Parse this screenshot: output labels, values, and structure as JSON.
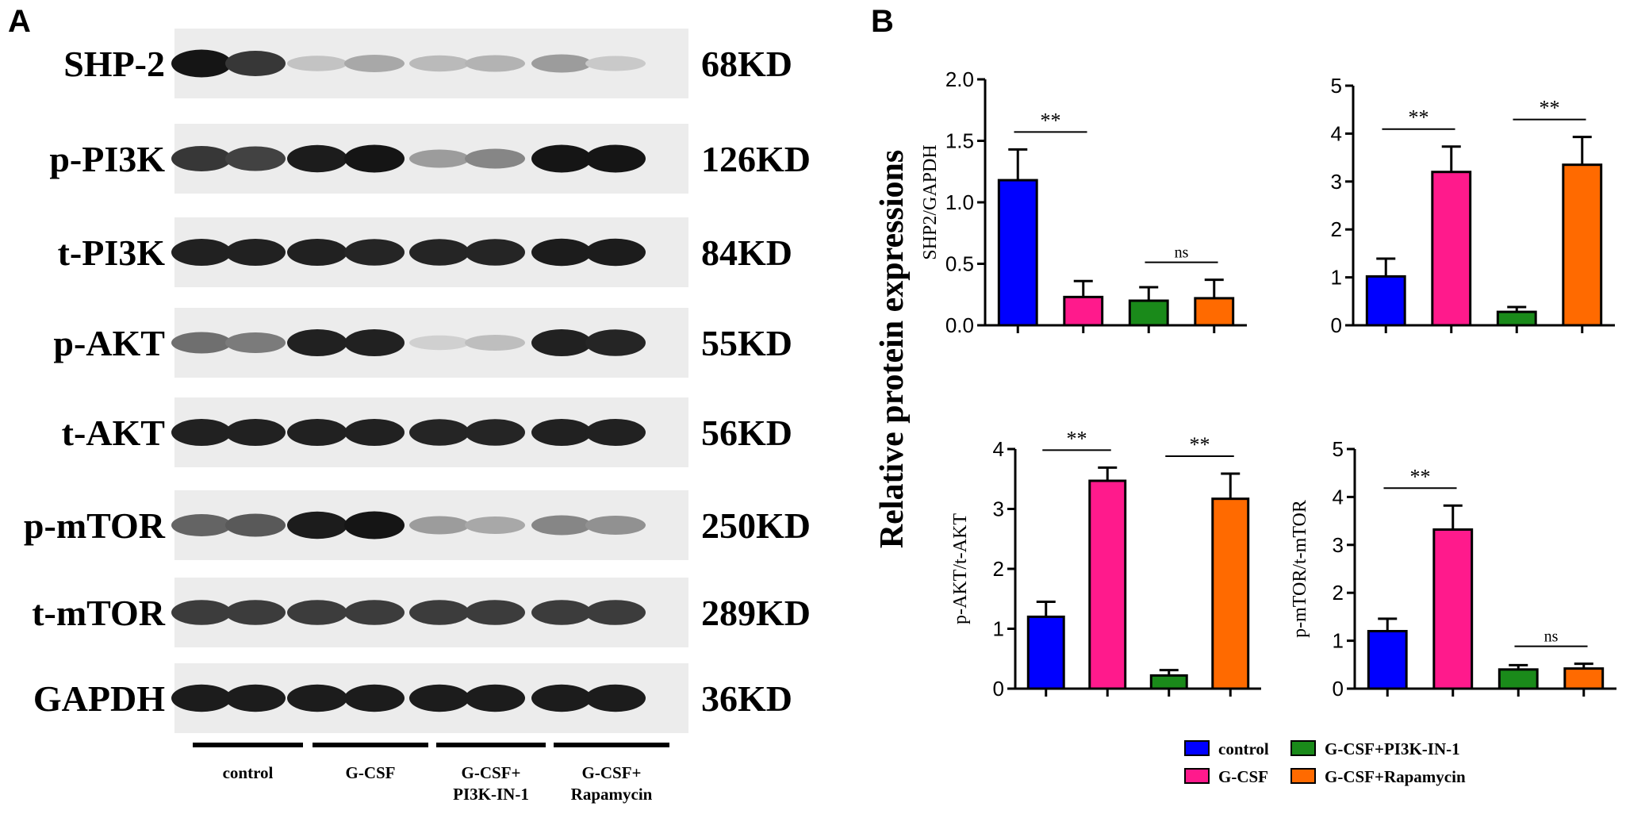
{
  "panel_a": {
    "label": "A",
    "blots": [
      {
        "name": "SHP-2",
        "kd": "68KD",
        "bands": [
          0.95,
          0.8,
          0.18,
          0.3,
          0.22,
          0.25,
          0.35,
          0.15
        ]
      },
      {
        "name": "p-PI3K",
        "kd": "126KD",
        "bands": [
          0.8,
          0.75,
          0.92,
          0.95,
          0.35,
          0.45,
          0.95,
          0.95
        ]
      },
      {
        "name": "t-PI3K",
        "kd": "84KD",
        "bands": [
          0.9,
          0.9,
          0.9,
          0.88,
          0.88,
          0.88,
          0.92,
          0.92
        ]
      },
      {
        "name": "p-AKT",
        "kd": "55KD",
        "bands": [
          0.55,
          0.5,
          0.9,
          0.9,
          0.12,
          0.2,
          0.9,
          0.88
        ]
      },
      {
        "name": "t-AKT",
        "kd": "56KD",
        "bands": [
          0.9,
          0.9,
          0.9,
          0.9,
          0.88,
          0.88,
          0.9,
          0.9
        ]
      },
      {
        "name": "p-mTOR",
        "kd": "250KD",
        "bands": [
          0.6,
          0.65,
          0.92,
          0.95,
          0.35,
          0.3,
          0.45,
          0.4
        ]
      },
      {
        "name": "t-mTOR",
        "kd": "289KD",
        "bands": [
          0.78,
          0.78,
          0.78,
          0.78,
          0.78,
          0.78,
          0.78,
          0.78
        ]
      },
      {
        "name": "GAPDH",
        "kd": "36KD",
        "bands": [
          0.92,
          0.92,
          0.92,
          0.92,
          0.92,
          0.92,
          0.92,
          0.92
        ]
      }
    ],
    "groups": [
      {
        "line1": "control",
        "line2": ""
      },
      {
        "line1": "G-CSF",
        "line2": ""
      },
      {
        "line1": "G-CSF+",
        "line2": "PI3K-IN-1"
      },
      {
        "line1": "G-CSF+",
        "line2": "Rapamycin"
      }
    ]
  },
  "panel_b": {
    "label": "B",
    "shared_ylabel": "Relative protein expressions",
    "colors": {
      "control": "#0000ff",
      "gcsf": "#ff1a8c",
      "pi3k": "#1a8a1a",
      "rapa": "#ff6a00"
    },
    "legend": [
      {
        "label": "control",
        "color": "#0000ff"
      },
      {
        "label": "G-CSF",
        "color": "#ff1a8c"
      },
      {
        "label": "G-CSF+PI3K-IN-1",
        "color": "#1a8a1a"
      },
      {
        "label": "G-CSF+Rapamycin",
        "color": "#ff6a00"
      }
    ]
  },
  "chart_data": [
    {
      "type": "bar",
      "ylabel": "SHP2/GAPDH",
      "ylim": [
        0,
        2.0
      ],
      "yticks": [
        "0.0",
        "0.5",
        "1.0",
        "1.5",
        "2.0"
      ],
      "values": [
        1.18,
        0.23,
        0.2,
        0.22
      ],
      "errors": [
        0.25,
        0.13,
        0.11,
        0.15
      ],
      "significance": [
        {
          "bars": [
            0,
            1
          ],
          "label": "**"
        },
        {
          "bars": [
            2,
            3
          ],
          "label": "ns"
        }
      ]
    },
    {
      "type": "bar",
      "ylabel": "",
      "ylim": [
        0,
        5
      ],
      "yticks": [
        "0",
        "1",
        "2",
        "3",
        "4",
        "5"
      ],
      "values": [
        1.02,
        3.2,
        0.28,
        3.35
      ],
      "errors": [
        0.37,
        0.53,
        0.1,
        0.58
      ],
      "significance": [
        {
          "bars": [
            0,
            1
          ],
          "label": "**"
        },
        {
          "bars": [
            2,
            3
          ],
          "label": "**"
        }
      ]
    },
    {
      "type": "bar",
      "ylabel": "p-AKT/t-AKT",
      "ylim": [
        0,
        4
      ],
      "yticks": [
        "0",
        "1",
        "2",
        "3",
        "4"
      ],
      "values": [
        1.2,
        3.47,
        0.22,
        3.17
      ],
      "errors": [
        0.25,
        0.22,
        0.09,
        0.42
      ],
      "significance": [
        {
          "bars": [
            0,
            1
          ],
          "label": "**"
        },
        {
          "bars": [
            2,
            3
          ],
          "label": "**"
        }
      ]
    },
    {
      "type": "bar",
      "ylabel": "p-mTOR/t-mTOR",
      "ylim": [
        0,
        5
      ],
      "yticks": [
        "0",
        "1",
        "2",
        "3",
        "4",
        "5"
      ],
      "values": [
        1.2,
        3.32,
        0.4,
        0.42
      ],
      "errors": [
        0.26,
        0.5,
        0.09,
        0.1
      ],
      "significance": [
        {
          "bars": [
            0,
            1
          ],
          "label": "**"
        },
        {
          "bars": [
            2,
            3
          ],
          "label": "ns"
        }
      ]
    }
  ]
}
